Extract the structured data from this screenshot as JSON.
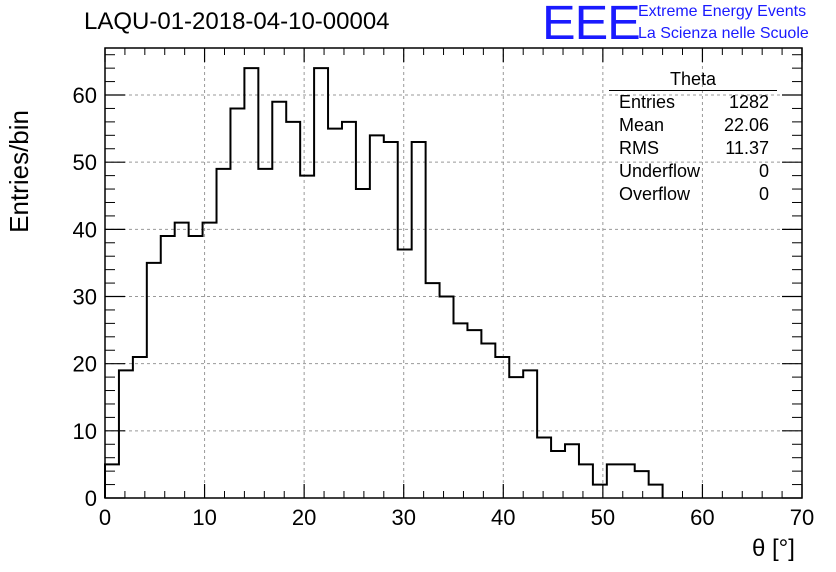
{
  "header": {
    "title": "LAQU-01-2018-04-10-00004",
    "logo_text": "EEE",
    "brand_line1": "Extreme Energy Events",
    "brand_line2": "La Scienza nelle Scuole",
    "brand_color": "#1a1aff"
  },
  "stats_box": {
    "name": "Theta",
    "rows": [
      {
        "label": "Entries",
        "value": "1282"
      },
      {
        "label": "Mean",
        "value": "22.06"
      },
      {
        "label": "RMS",
        "value": "11.37"
      },
      {
        "label": "Underflow",
        "value": "0"
      },
      {
        "label": "Overflow",
        "value": "0"
      }
    ]
  },
  "chart_data": {
    "type": "bar",
    "style": "step-histogram",
    "xlabel": "θ [°]",
    "ylabel": "Entries/bin",
    "xlim": [
      0,
      70
    ],
    "ylim": [
      0,
      67
    ],
    "bin_width": 1.4,
    "grid": true,
    "x_ticks": [
      0,
      10,
      20,
      30,
      40,
      50,
      60,
      70
    ],
    "y_ticks": [
      0,
      10,
      20,
      30,
      40,
      50,
      60
    ],
    "values": [
      5,
      19,
      21,
      35,
      39,
      41,
      39,
      41,
      49,
      58,
      64,
      49,
      59,
      56,
      48,
      64,
      55,
      56,
      46,
      54,
      53,
      37,
      53,
      32,
      30,
      26,
      25,
      23,
      21,
      18,
      19,
      9,
      7,
      8,
      5,
      2,
      5,
      5,
      4,
      2
    ]
  }
}
